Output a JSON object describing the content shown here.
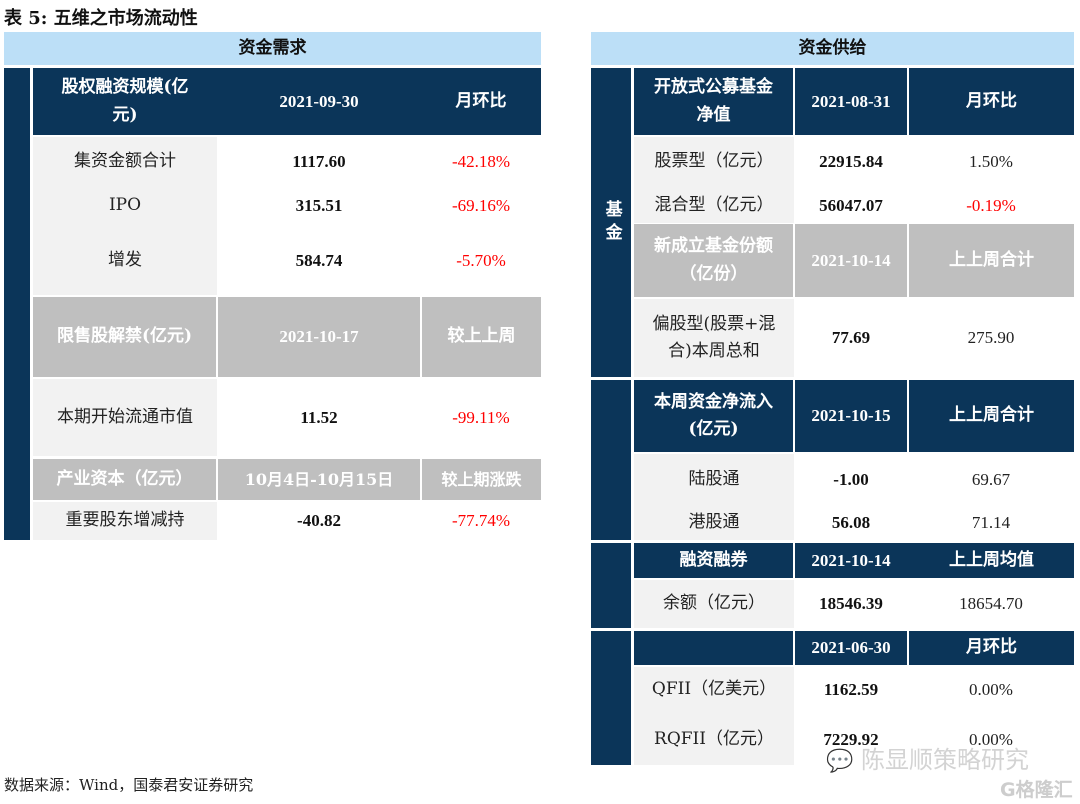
{
  "title": "表 5:  五维之市场流动性",
  "demand": {
    "band": "资金需求",
    "h1": {
      "label": "股权融资规模(亿元)",
      "date": "2021-09-30",
      "chg": "月环比"
    },
    "rows1": [
      {
        "label": "集资金额合计",
        "value": "1117.60",
        "chg": "-42.18%"
      },
      {
        "label": "IPO",
        "value": "315.51",
        "chg": "-69.16%"
      },
      {
        "label": "增发",
        "value": "584.74",
        "chg": "-5.70%"
      }
    ],
    "h2": {
      "label": "限售股解禁(亿元)",
      "date": "2021-10-17",
      "chg": "较上上周"
    },
    "rows2": [
      {
        "label": "本期开始流通市值",
        "value": "11.52",
        "chg": "-99.11%"
      }
    ],
    "h3": {
      "label": "产业资本（亿元）",
      "date": "10月4日-10月15日",
      "chg": "较上期涨跌"
    },
    "rows3": [
      {
        "label": "重要股东增减持",
        "value": "-40.82",
        "chg": "-77.74%"
      }
    ]
  },
  "supply": {
    "band": "资金供给",
    "side_fund": "基金",
    "h1": {
      "label": "开放式公募基金净值",
      "date": "2021-08-31",
      "chg": "月环比"
    },
    "rows1": [
      {
        "label": "股票型（亿元）",
        "value": "22915.84",
        "chg": "1.50%"
      },
      {
        "label": "混合型（亿元）",
        "value": "56047.07",
        "chg": "-0.19%"
      }
    ],
    "h2": {
      "label": "新成立基金份额（亿份）",
      "date": "2021-10-14",
      "chg": "上上周合计"
    },
    "rows2": [
      {
        "label": "偏股型(股票+混合)本周总和",
        "value": "77.69",
        "chg": "275.90"
      }
    ],
    "h3": {
      "label": "本周资金净流入(亿元)",
      "date": "2021-10-15",
      "chg": "上上周合计"
    },
    "rows3": [
      {
        "label": "陆股通",
        "value": "-1.00",
        "chg": "69.67"
      },
      {
        "label": "港股通",
        "value": "56.08",
        "chg": "71.14"
      }
    ],
    "h4": {
      "label": "融资融券",
      "date": "2021-10-14",
      "chg": "上上周均值"
    },
    "rows4": [
      {
        "label": "余额（亿元）",
        "value": "18546.39",
        "chg": "18654.70"
      }
    ],
    "h5": {
      "label": "",
      "date": "2021-06-30",
      "chg": "月环比"
    },
    "rows5": [
      {
        "label": "QFII（亿美元）",
        "value": "1162.59",
        "chg": "0.00%"
      },
      {
        "label": "RQFII（亿元）",
        "value": "7229.92",
        "chg": "0.00%"
      }
    ]
  },
  "footer": "数据来源：Wind，国泰君安证券研究",
  "watermark": "陈显顺策略研究",
  "watermark2": "格隆汇"
}
